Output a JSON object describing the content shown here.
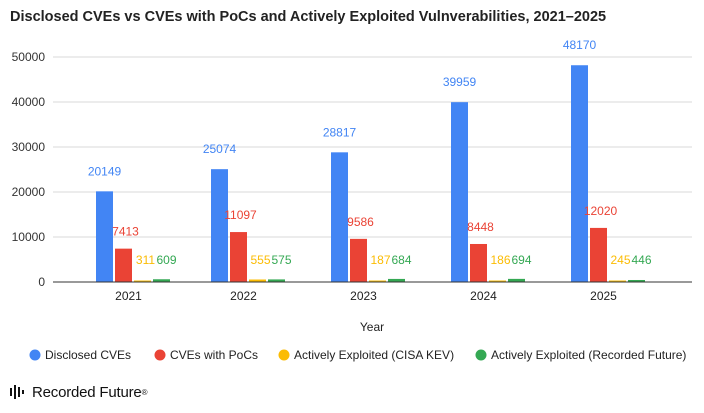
{
  "chart_data": {
    "type": "bar",
    "title": "Disclosed CVEs vs CVEs with PoCs and Actively Exploited Vulnverabilities, 2021–2025",
    "xlabel": "Year",
    "ylabel": "",
    "ylim": [
      0,
      50000
    ],
    "yticks": [
      0,
      10000,
      20000,
      30000,
      40000,
      50000
    ],
    "grid": true,
    "legend_position": "bottom",
    "categories": [
      "2021",
      "2022",
      "2023",
      "2024",
      "2025"
    ],
    "series": [
      {
        "name": "Disclosed CVEs",
        "color": "#4285f4",
        "values": [
          20149,
          25074,
          28817,
          39959,
          48170
        ]
      },
      {
        "name": "CVEs with PoCs",
        "color": "#ea4335",
        "values": [
          7413,
          11097,
          9586,
          8448,
          12020
        ]
      },
      {
        "name": "Actively Exploited (CISA KEV)",
        "color": "#fbbc04",
        "values": [
          311,
          555,
          187,
          186,
          245
        ]
      },
      {
        "name": "Actively Exploited (Recorded Future)",
        "color": "#34a853",
        "values": [
          609,
          575,
          684,
          694,
          446
        ]
      }
    ]
  },
  "branding": {
    "name": "Recorded Future",
    "mark": "®"
  }
}
